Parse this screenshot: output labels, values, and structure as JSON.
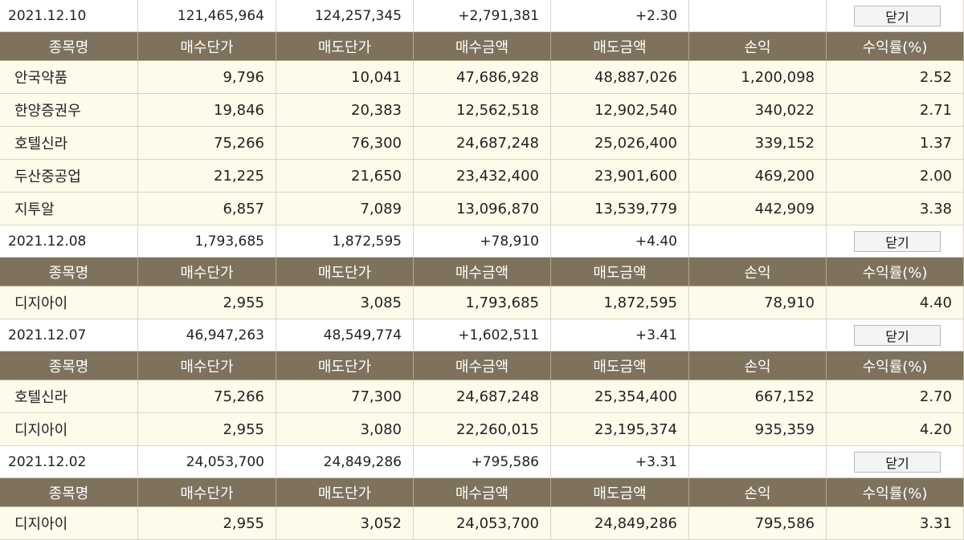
{
  "headers": {
    "name": "종목명",
    "buy_price": "매수단가",
    "sell_price": "매도단가",
    "buy_amount": "매수금액",
    "sell_amount": "매도금액",
    "profit": "손익",
    "rate": "수익률(%)"
  },
  "groups": [
    {
      "date": "2021.12.10",
      "buy_total": "121,465,964",
      "sell_total": "124,257,345",
      "profit": "+2,791,381",
      "rate": "+2.30",
      "close_label": "닫기",
      "rows": [
        {
          "name": "안국약품",
          "buy_price": "9,796",
          "sell_price": "10,041",
          "buy_amount": "47,686,928",
          "sell_amount": "48,887,026",
          "profit": "1,200,098",
          "rate": "2.52"
        },
        {
          "name": "한양증권우",
          "buy_price": "19,846",
          "sell_price": "20,383",
          "buy_amount": "12,562,518",
          "sell_amount": "12,902,540",
          "profit": "340,022",
          "rate": "2.71"
        },
        {
          "name": "호텔신라",
          "buy_price": "75,266",
          "sell_price": "76,300",
          "buy_amount": "24,687,248",
          "sell_amount": "25,026,400",
          "profit": "339,152",
          "rate": "1.37"
        },
        {
          "name": "두산중공업",
          "buy_price": "21,225",
          "sell_price": "21,650",
          "buy_amount": "23,432,400",
          "sell_amount": "23,901,600",
          "profit": "469,200",
          "rate": "2.00"
        },
        {
          "name": "지투알",
          "buy_price": "6,857",
          "sell_price": "7,089",
          "buy_amount": "13,096,870",
          "sell_amount": "13,539,779",
          "profit": "442,909",
          "rate": "3.38"
        }
      ]
    },
    {
      "date": "2021.12.08",
      "buy_total": "1,793,685",
      "sell_total": "1,872,595",
      "profit": "+78,910",
      "rate": "+4.40",
      "close_label": "닫기",
      "rows": [
        {
          "name": "디지아이",
          "buy_price": "2,955",
          "sell_price": "3,085",
          "buy_amount": "1,793,685",
          "sell_amount": "1,872,595",
          "profit": "78,910",
          "rate": "4.40"
        }
      ]
    },
    {
      "date": "2021.12.07",
      "buy_total": "46,947,263",
      "sell_total": "48,549,774",
      "profit": "+1,602,511",
      "rate": "+3.41",
      "close_label": "닫기",
      "rows": [
        {
          "name": "호텔신라",
          "buy_price": "75,266",
          "sell_price": "77,300",
          "buy_amount": "24,687,248",
          "sell_amount": "25,354,400",
          "profit": "667,152",
          "rate": "2.70"
        },
        {
          "name": "디지아이",
          "buy_price": "2,955",
          "sell_price": "3,080",
          "buy_amount": "22,260,015",
          "sell_amount": "23,195,374",
          "profit": "935,359",
          "rate": "4.20"
        }
      ]
    },
    {
      "date": "2021.12.02",
      "buy_total": "24,053,700",
      "sell_total": "24,849,286",
      "profit": "+795,586",
      "rate": "+3.31",
      "close_label": "닫기",
      "rows": [
        {
          "name": "디지아이",
          "buy_price": "2,955",
          "sell_price": "3,052",
          "buy_amount": "24,053,700",
          "sell_amount": "24,849,286",
          "profit": "795,586",
          "rate": "3.31"
        }
      ]
    }
  ],
  "colors": {
    "header_bg": "#7f725d",
    "row_bg": "#fdfbea",
    "profit_red": "#d81d34"
  }
}
